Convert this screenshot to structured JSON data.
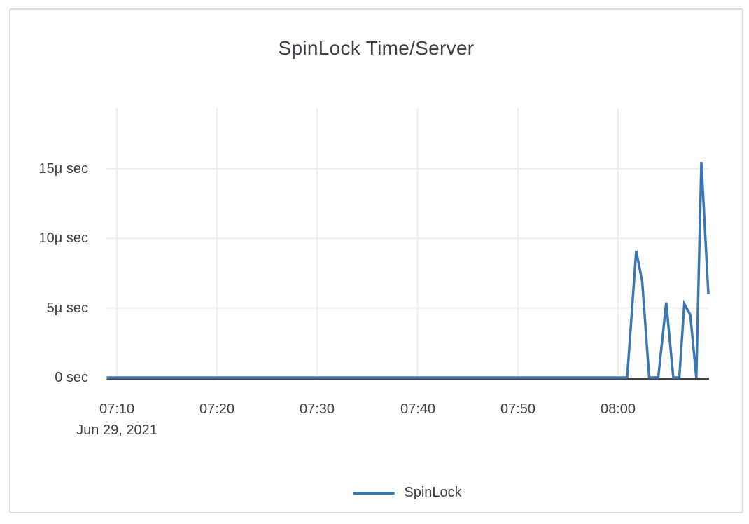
{
  "colors": {
    "background": "#ffffff",
    "card_border": "#dcdcdc",
    "grid": "#ededed",
    "axis": "#414141",
    "text": "#3b3f44",
    "line": "#3a77b2"
  },
  "chart_data": {
    "type": "line",
    "title": "SpinLock Time/Server",
    "grid": true,
    "legend_position": "bottom",
    "x_axis": {
      "kind": "time",
      "date_label": "Jun 29, 2021",
      "start_time": "07:09",
      "end_time": "08:09",
      "range_minutes": [
        0,
        60
      ],
      "ticks": [
        {
          "offset_min": 1,
          "label": "07:10"
        },
        {
          "offset_min": 11,
          "label": "07:20"
        },
        {
          "offset_min": 21,
          "label": "07:30"
        },
        {
          "offset_min": 31,
          "label": "07:40"
        },
        {
          "offset_min": 41,
          "label": "07:50"
        },
        {
          "offset_min": 51,
          "label": "08:00"
        }
      ]
    },
    "y_axis": {
      "unit": "microseconds",
      "ylim": [
        0,
        19.4
      ],
      "ticks": [
        {
          "value": 0,
          "label": "0 sec"
        },
        {
          "value": 5,
          "label": "5μ sec"
        },
        {
          "value": 10,
          "label": "10μ sec"
        },
        {
          "value": 15,
          "label": "15μ sec"
        }
      ]
    },
    "series": [
      {
        "name": "SpinLock",
        "color": "#3a77b2",
        "points_offset_min_value_us": [
          [
            0,
            0
          ],
          [
            4,
            0
          ],
          [
            8,
            0
          ],
          [
            12,
            0
          ],
          [
            16,
            0
          ],
          [
            20,
            0
          ],
          [
            24,
            0
          ],
          [
            28,
            0
          ],
          [
            32,
            0
          ],
          [
            36,
            0
          ],
          [
            40,
            0
          ],
          [
            44,
            0
          ],
          [
            48,
            0
          ],
          [
            51.9,
            0
          ],
          [
            52.8,
            9.1
          ],
          [
            53.4,
            6.9
          ],
          [
            54.1,
            0
          ],
          [
            55.0,
            0
          ],
          [
            55.8,
            5.4
          ],
          [
            56.5,
            0
          ],
          [
            57.1,
            0
          ],
          [
            57.6,
            5.3
          ],
          [
            58.2,
            4.5
          ],
          [
            58.8,
            0
          ],
          [
            59.3,
            15.5
          ],
          [
            60,
            6.0
          ]
        ]
      }
    ]
  }
}
